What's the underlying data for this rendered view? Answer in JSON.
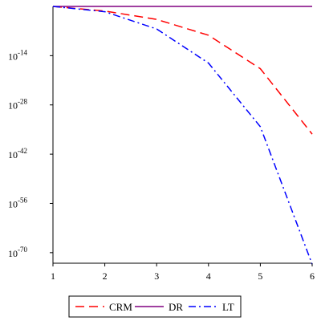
{
  "chart_data": {
    "type": "line",
    "title": "",
    "xlabel": "",
    "ylabel": "",
    "x": [
      1,
      2,
      3,
      4,
      5,
      6
    ],
    "xlim": [
      1,
      6
    ],
    "ylim": [
      -73,
      0
    ],
    "y_scale": "log10",
    "x_ticks": [
      "1",
      "2",
      "3",
      "4",
      "5",
      "6"
    ],
    "y_ticks": [
      {
        "base": "10",
        "exp": "-14",
        "value": -14
      },
      {
        "base": "10",
        "exp": "-28",
        "value": -28
      },
      {
        "base": "10",
        "exp": "-42",
        "value": -42
      },
      {
        "base": "10",
        "exp": "-56",
        "value": -56
      },
      {
        "base": "10",
        "exp": "-70",
        "value": -70
      }
    ],
    "grid": false,
    "legend_position": "bottom",
    "series": [
      {
        "name": "CRM",
        "color": "#ff0000",
        "dash": "dash",
        "log10_values": [
          0,
          -1.3,
          -3.7,
          -8.2,
          -17.7,
          -36.3
        ]
      },
      {
        "name": "DR",
        "color": "#800080",
        "dash": "solid",
        "log10_values": [
          0,
          0,
          0,
          0,
          0,
          0
        ]
      },
      {
        "name": "LT",
        "color": "#0000ff",
        "dash": "dashdot",
        "log10_values": [
          0,
          -1.5,
          -6.4,
          -16.1,
          -34.2,
          -73.3
        ]
      }
    ]
  }
}
